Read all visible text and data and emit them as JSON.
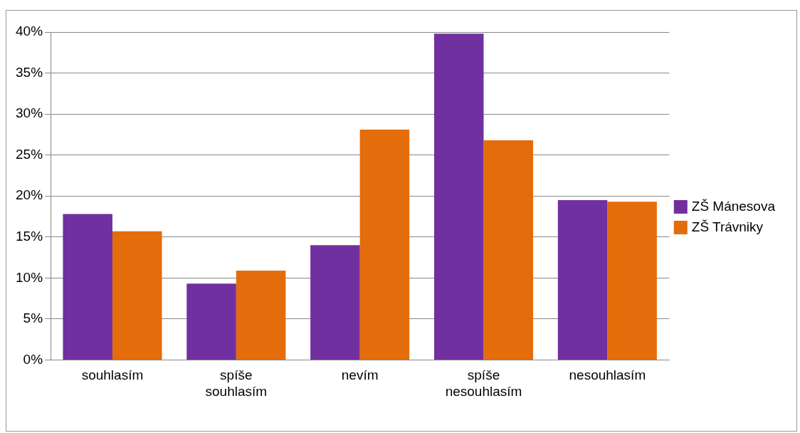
{
  "chart_data": {
    "type": "bar",
    "categories": [
      "souhlasím",
      "spíše souhlasím",
      "nevím",
      "spíše nesouhlasím",
      "nesouhlasím"
    ],
    "series": [
      {
        "name": "ZŠ Mánesova",
        "color": "#7030a0",
        "values": [
          17.8,
          9.3,
          14,
          39.8,
          19.5
        ]
      },
      {
        "name": "ZŠ Trávniky",
        "color": "#e46c0a",
        "values": [
          15.7,
          10.9,
          28.1,
          26.8,
          19.3
        ]
      }
    ],
    "ylim": [
      0,
      40
    ],
    "yticks": [
      {
        "value": 0,
        "label": "0%"
      },
      {
        "value": 5,
        "label": "5%"
      },
      {
        "value": 10,
        "label": "10%"
      },
      {
        "value": 15,
        "label": "15%"
      },
      {
        "value": 20,
        "label": "20%"
      },
      {
        "value": 25,
        "label": "25%"
      },
      {
        "value": 30,
        "label": "30%"
      },
      {
        "value": 35,
        "label": "35%"
      },
      {
        "value": 40,
        "label": "40%"
      }
    ],
    "grid": "y",
    "legend": "right"
  }
}
